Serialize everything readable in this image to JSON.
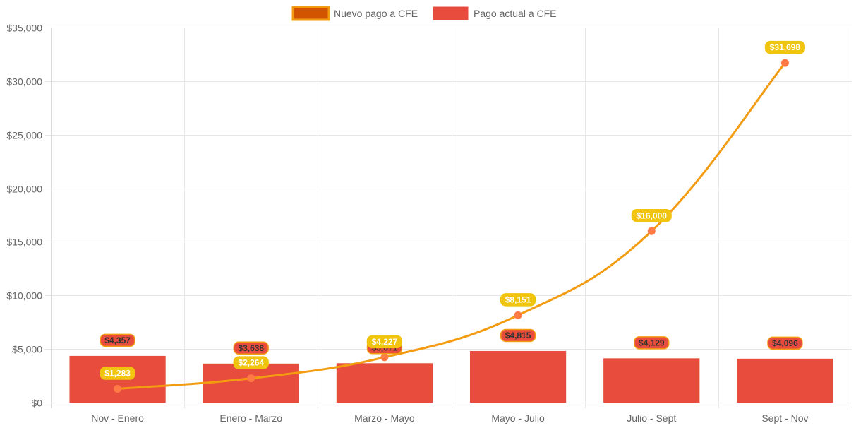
{
  "chart_data": {
    "type": "bar",
    "categories": [
      "Nov - Enero",
      "Enero - Marzo",
      "Marzo - Mayo",
      "Mayo - Julio",
      "Julio - Sept",
      "Sept - Nov"
    ],
    "series": [
      {
        "name": "Nuevo pago a CFE",
        "type": "line",
        "values": [
          1283,
          2264,
          4227,
          8151,
          16000,
          31698
        ],
        "labels": [
          "$1,283",
          "$2,264",
          "$4,227",
          "$8,151",
          "$16,000",
          "$31,698"
        ],
        "color": "#f39c12",
        "legend_fill": "#d35400",
        "point_color": "#ff7a45",
        "label_bg": "#f1c40f",
        "label_text_color": "#ffffff"
      },
      {
        "name": "Pago actual a CFE",
        "type": "bar",
        "values": [
          4357,
          3638,
          3671,
          4815,
          4129,
          4096
        ],
        "labels": [
          "$4,357",
          "$3,638",
          "$3,671",
          "$4,815",
          "$4,129",
          "$4,096"
        ],
        "color": "#e74c3c",
        "label_bg": "#e74c3c",
        "label_border": "#f39c12",
        "label_text_color": "#333333"
      }
    ],
    "y_ticks": [
      "$0",
      "$5,000",
      "$10,000",
      "$15,000",
      "$20,000",
      "$25,000",
      "$30,000",
      "$35,000"
    ],
    "ylim": [
      0,
      35000
    ],
    "grid": true,
    "legend_position": "top-center",
    "title": "",
    "xlabel": "",
    "ylabel": ""
  }
}
